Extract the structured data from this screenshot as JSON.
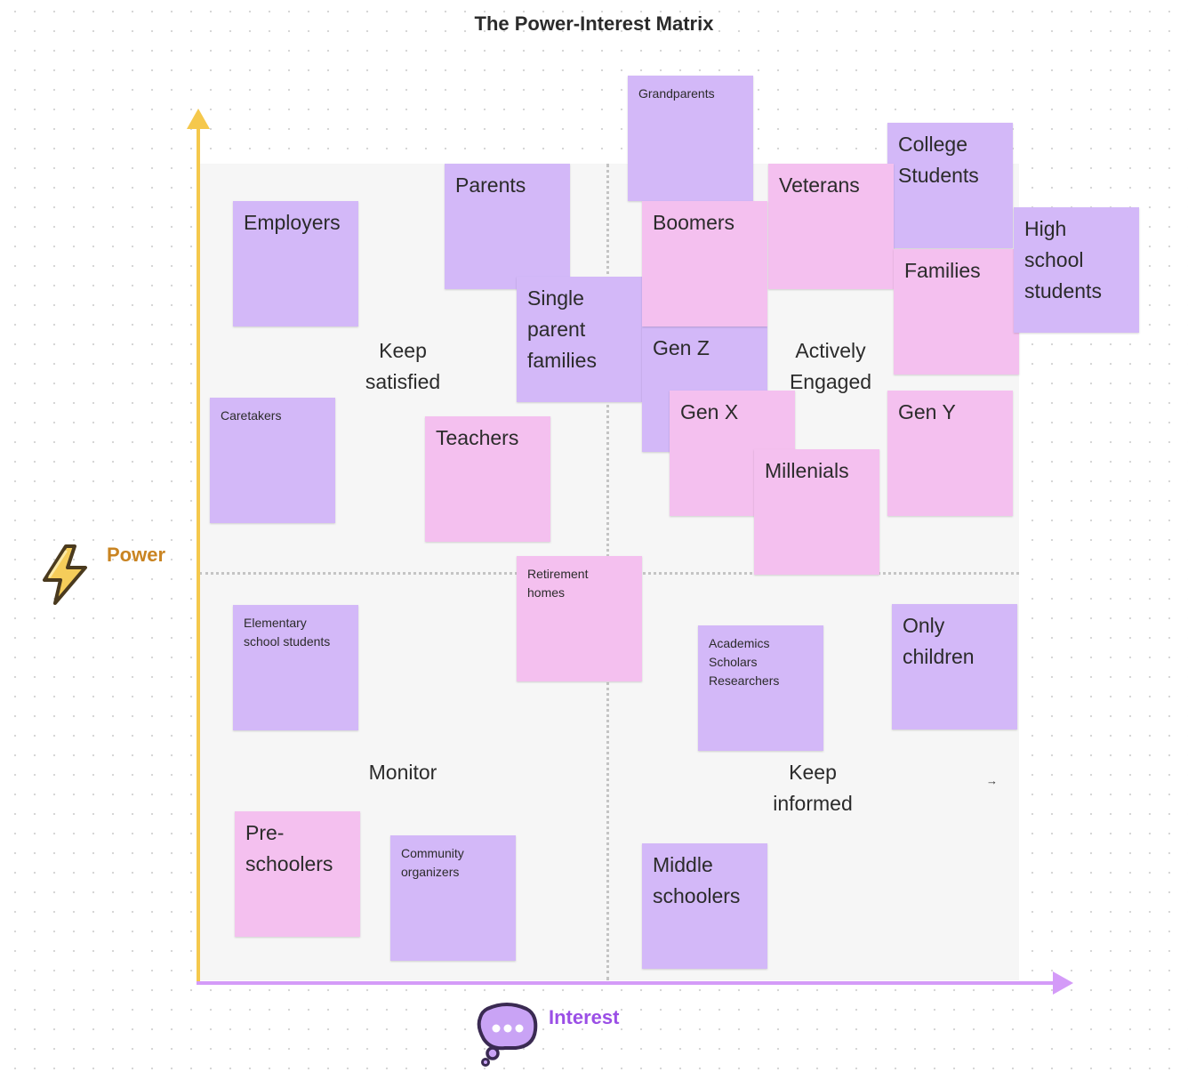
{
  "title": "The Power-Interest Matrix",
  "axes": {
    "y_label": "Power",
    "x_label": "Interest",
    "y_color": "#f5c84c",
    "x_color": "#d49bf8",
    "y_icon": "lightning-bolt-icon",
    "x_icon": "thought-bubble-icon"
  },
  "quadrants": {
    "top_left": "Keep\nsatisfied",
    "top_right": "Actively\nEngaged",
    "bottom_left": "Monitor",
    "bottom_right": "Keep\ninformed"
  },
  "extra_arrow": "→",
  "colors": {
    "purple_note": "#d3b8f8",
    "pink_note": "#f4c0ef",
    "quadrant_bg": "#f6f6f6"
  },
  "notes": [
    {
      "name": "grandparents",
      "text": "Grandparents",
      "color": "purple"
    },
    {
      "name": "college-students",
      "text": "College\nStudents",
      "color": "purple"
    },
    {
      "name": "parents",
      "text": "Parents",
      "color": "purple"
    },
    {
      "name": "employers",
      "text": "Employers",
      "color": "purple"
    },
    {
      "name": "single-parent-families",
      "text": "Single\nparent\nfamilies",
      "color": "purple"
    },
    {
      "name": "veterans",
      "text": "Veterans",
      "color": "pink"
    },
    {
      "name": "boomers",
      "text": "Boomers",
      "color": "pink"
    },
    {
      "name": "families",
      "text": "Families",
      "color": "pink"
    },
    {
      "name": "high-school-students",
      "text": "High\nschool\nstudents",
      "color": "purple"
    },
    {
      "name": "gen-z",
      "text": "Gen Z",
      "color": "purple"
    },
    {
      "name": "gen-x",
      "text": "Gen X",
      "color": "pink"
    },
    {
      "name": "millenials",
      "text": "Millenials",
      "color": "pink"
    },
    {
      "name": "gen-y",
      "text": "Gen Y",
      "color": "pink"
    },
    {
      "name": "caretakers",
      "text": "Caretakers",
      "color": "purple"
    },
    {
      "name": "teachers",
      "text": "Teachers",
      "color": "pink"
    },
    {
      "name": "retirement-homes",
      "text": "Retirement\nhomes",
      "color": "pink"
    },
    {
      "name": "elementary-school-students",
      "text": "Elementary\nschool students",
      "color": "purple"
    },
    {
      "name": "academics-scholars-researchers",
      "text": "Academics\nScholars\nResearchers",
      "color": "purple"
    },
    {
      "name": "only-children",
      "text": "Only\nchildren",
      "color": "purple"
    },
    {
      "name": "pre-schoolers",
      "text": "Pre-\nschoolers",
      "color": "pink"
    },
    {
      "name": "community-organizers",
      "text": "Community\norganizers",
      "color": "purple"
    },
    {
      "name": "middle-schoolers",
      "text": "Middle\nschoolers",
      "color": "purple"
    }
  ]
}
